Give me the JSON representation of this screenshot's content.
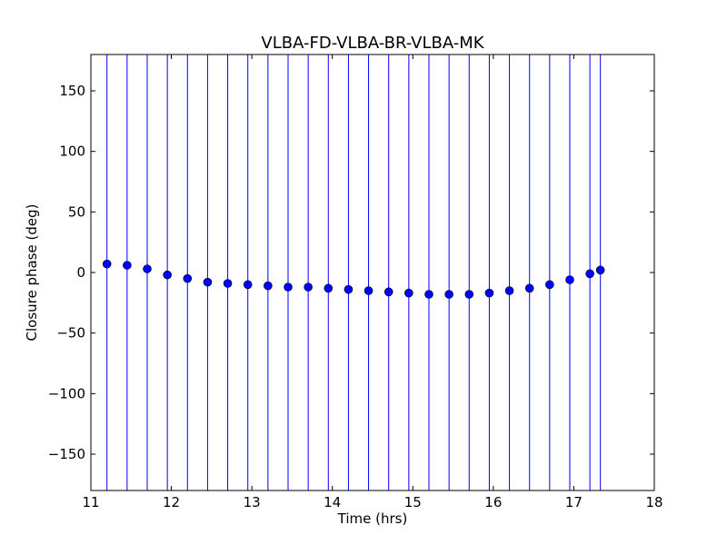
{
  "chart_data": {
    "type": "scatter",
    "title": "VLBA-FD-VLBA-BR-VLBA-MK",
    "xlabel": "Time (hrs)",
    "ylabel": "Closure phase (deg)",
    "xlim": [
      11,
      18
    ],
    "ylim": [
      -180,
      180
    ],
    "x_ticks": [
      11,
      12,
      13,
      14,
      15,
      16,
      17,
      18
    ],
    "y_ticks": [
      -150,
      -100,
      -50,
      0,
      50,
      100,
      150
    ],
    "x_tick_labels": [
      "11",
      "12",
      "13",
      "14",
      "15",
      "16",
      "17",
      "18"
    ],
    "y_tick_labels": [
      "−150",
      "−100",
      "−50",
      "0",
      "50",
      "100",
      "150"
    ],
    "grid": false,
    "series": [
      {
        "color": "#0000ff",
        "marker": "circle",
        "error_bars": "vertical, spanning full y-range",
        "x": [
          11.2,
          11.45,
          11.7,
          11.95,
          12.2,
          12.45,
          12.7,
          12.95,
          13.2,
          13.45,
          13.7,
          13.95,
          14.2,
          14.45,
          14.7,
          14.95,
          15.2,
          15.45,
          15.7,
          15.95,
          16.2,
          16.45,
          16.7,
          16.95,
          17.2,
          17.33
        ],
        "y": [
          7,
          6,
          3,
          -2,
          -5,
          -8,
          -9,
          -10,
          -11,
          -12,
          -12,
          -13,
          -14,
          -15,
          -16,
          -17,
          -18,
          -18,
          -18,
          -17,
          -15,
          -13,
          -10,
          -6,
          -1,
          2
        ]
      }
    ]
  }
}
